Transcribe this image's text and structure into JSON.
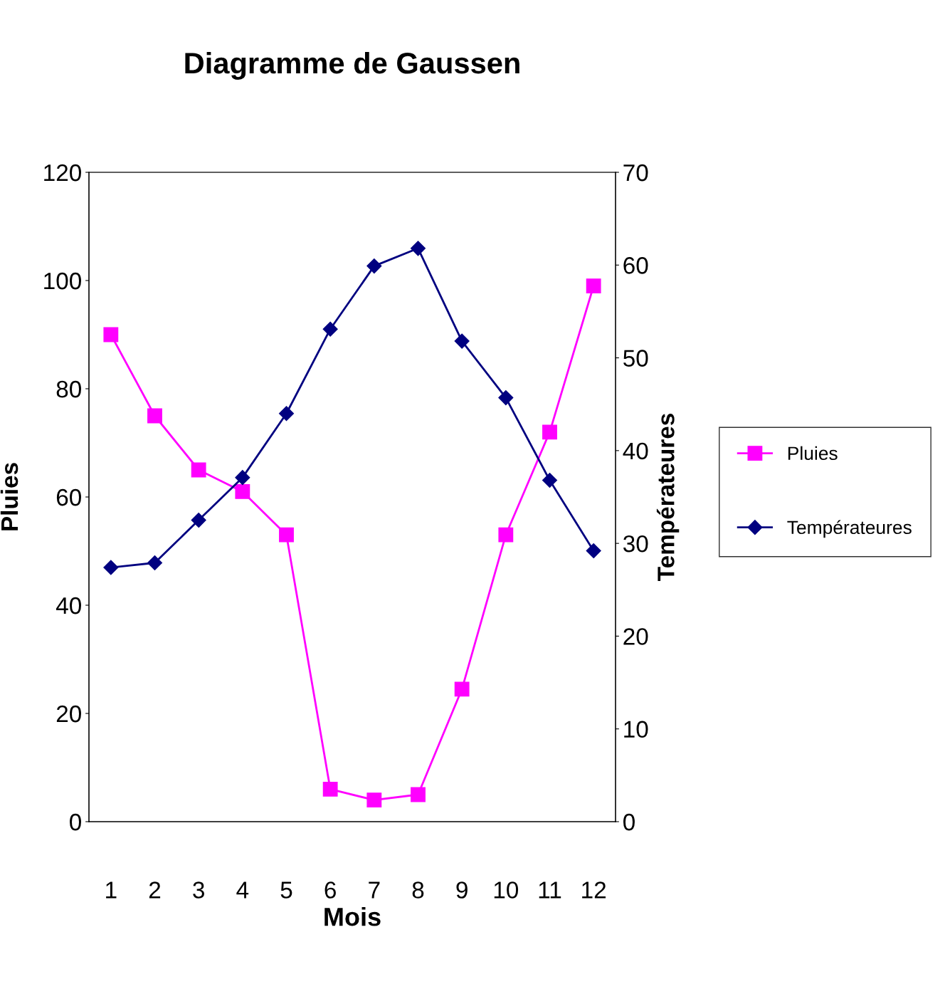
{
  "chart_data": {
    "type": "line",
    "title": "Diagramme de Gaussen",
    "xlabel": "Mois",
    "ylabel": "Pluies",
    "y2label": "Températeures",
    "categories": [
      "1",
      "2",
      "3",
      "4",
      "5",
      "6",
      "7",
      "8",
      "9",
      "10",
      "11",
      "12"
    ],
    "series": [
      {
        "name": "Pluies",
        "color": "#ff00ff",
        "marker": "square",
        "values": [
          90,
          75,
          65,
          61,
          53,
          6,
          4,
          5,
          24.5,
          53,
          72,
          99
        ]
      },
      {
        "name": "Températeures",
        "color": "#000080",
        "marker": "diamond",
        "axis": "y2",
        "values": [
          27.4,
          27.9,
          32.5,
          37.1,
          44,
          53.1,
          59.9,
          61.8,
          51.8,
          45.7,
          36.8,
          29.2
        ]
      }
    ],
    "ylim": [
      0,
      120
    ],
    "yticks": [
      0,
      20,
      40,
      60,
      80,
      100,
      120
    ],
    "y2lim": [
      0,
      70
    ],
    "y2ticks": [
      0,
      10,
      20,
      30,
      40,
      50,
      60,
      70
    ],
    "grid": false,
    "legend": "right",
    "line_style": "solid"
  }
}
